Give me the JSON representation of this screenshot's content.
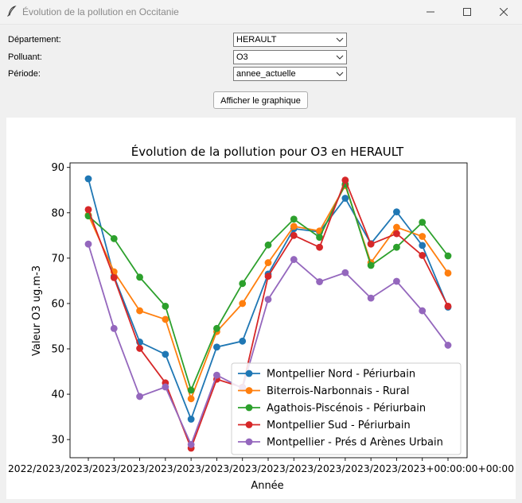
{
  "window": {
    "title": "Évolution de la pollution en Occitanie"
  },
  "form": {
    "departement_label": "Département:",
    "departement_value": "HERAULT",
    "polluant_label": "Polluant:",
    "polluant_value": "O3",
    "periode_label": "Période:",
    "periode_value": "annee_actuelle",
    "show_button": "Afficher le graphique"
  },
  "chart_data": {
    "type": "line",
    "title": "Évolution de la pollution pour O3 en HERAULT",
    "xlabel": "Année",
    "ylabel": "Valeur O3 ug.m-3",
    "ylim": [
      26,
      91
    ],
    "yticks": [
      30,
      40,
      50,
      60,
      70,
      80,
      90
    ],
    "x_tick_label": "2022-08-01 00:00:00+00:00",
    "x_tick_overlap_text": "2022/2023/2023/2023/2023/2023/2023/2023/2023/2023/2023/2023/2023/2023/2023+00:00:00+00:00",
    "legend_position": "lower right",
    "marker": "circle",
    "series": [
      {
        "name": "Montpellier Nord - Périurbain",
        "color": "#1f77b4",
        "values": [
          87.5,
          66,
          51.5,
          48.8,
          34.5,
          50.4,
          51.7,
          66.5,
          76.5,
          75.8,
          83.2,
          73.2,
          80.2,
          72.8,
          59.2
        ]
      },
      {
        "name": "Biterrois-Narbonnais - Rural",
        "color": "#ff7f0e",
        "values": [
          79.5,
          67,
          58.4,
          56.5,
          39,
          53.8,
          60,
          69,
          77,
          76,
          86,
          69,
          76.8,
          74.8,
          66.7
        ]
      },
      {
        "name": "Agathois-Piscénois - Périurbain",
        "color": "#2ca02c",
        "values": [
          79.3,
          74.3,
          65.8,
          59.4,
          40.9,
          54.5,
          64.4,
          72.9,
          78.6,
          74.6,
          86.3,
          68.4,
          72.4,
          77.9,
          70.5
        ]
      },
      {
        "name": "Montpellier Sud - Périurbain",
        "color": "#d62728",
        "values": [
          80.7,
          65.7,
          50.1,
          42.5,
          28.1,
          43.3,
          41.5,
          66,
          75,
          72.4,
          87.2,
          73.1,
          75.4,
          70.6,
          59.4
        ]
      },
      {
        "name": "Montpellier - Prés d Arènes Urbain",
        "color": "#9467bd",
        "values": [
          73.1,
          54.5,
          39.5,
          41.6,
          28.9,
          44.2,
          41.3,
          60.9,
          69.7,
          64.8,
          66.8,
          61.2,
          64.9,
          58.4,
          50.8
        ]
      }
    ]
  }
}
